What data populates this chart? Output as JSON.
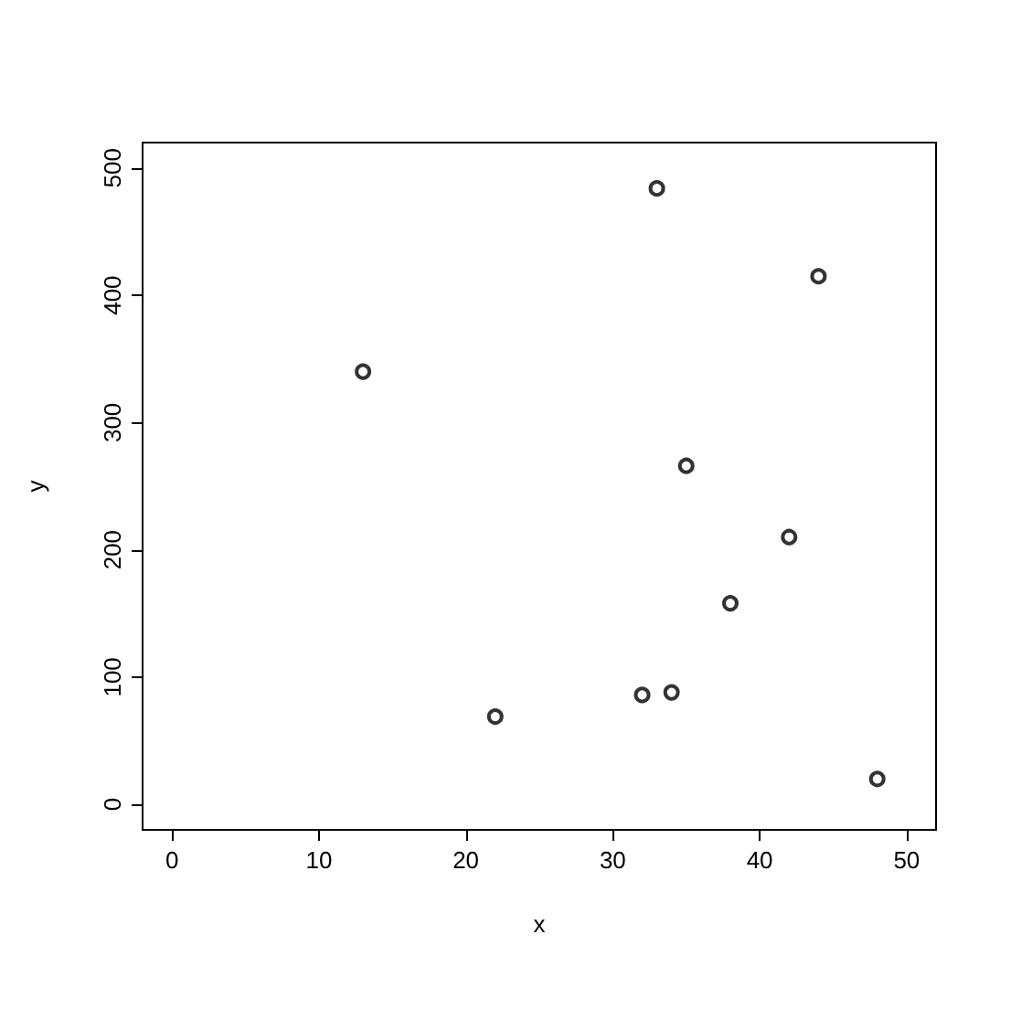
{
  "chart_data": {
    "type": "scatter",
    "xlabel": "x",
    "ylabel": "y",
    "x": [
      13,
      33,
      44,
      35,
      42,
      38,
      22,
      32,
      34,
      48
    ],
    "values": [
      340,
      484,
      415,
      266,
      210,
      158,
      69,
      86,
      88,
      20
    ],
    "color": "#000000",
    "marker": "circle",
    "grid": false,
    "xlim": [
      -2,
      52
    ],
    "xticks": [
      0,
      10,
      20,
      30,
      40,
      50
    ],
    "ylim": [
      -20,
      520
    ],
    "yticks": [
      0,
      100,
      200,
      300,
      400,
      500
    ]
  }
}
